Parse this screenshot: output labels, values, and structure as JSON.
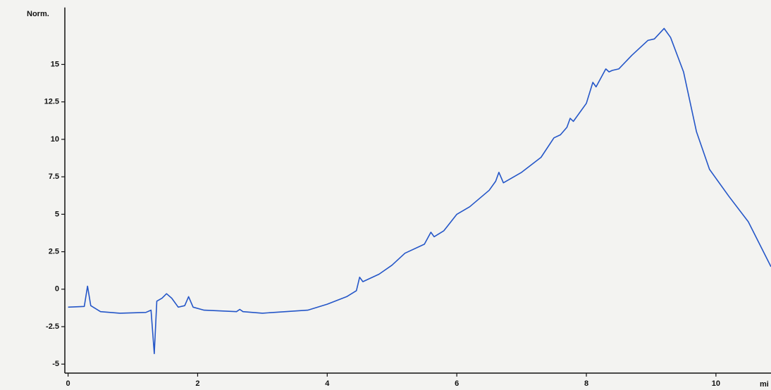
{
  "chart_data": {
    "type": "line",
    "y_label": "Norm.",
    "x_label": "mi",
    "x": [
      0,
      0.25,
      0.3,
      0.35,
      0.5,
      0.8,
      1.2,
      1.28,
      1.33,
      1.37,
      1.45,
      1.52,
      1.6,
      1.7,
      1.8,
      1.86,
      1.93,
      2.1,
      2.6,
      2.65,
      2.7,
      3.0,
      3.7,
      4.0,
      4.3,
      4.45,
      4.5,
      4.55,
      4.8,
      5.0,
      5.2,
      5.5,
      5.6,
      5.65,
      5.8,
      6.0,
      6.2,
      6.5,
      6.6,
      6.65,
      6.72,
      7.0,
      7.3,
      7.5,
      7.6,
      7.7,
      7.75,
      7.8,
      8.0,
      8.1,
      8.15,
      8.3,
      8.35,
      8.4,
      8.5,
      8.7,
      8.95,
      9.05,
      9.2,
      9.3,
      9.5,
      9.7,
      9.9,
      10.2,
      10.5,
      10.85
    ],
    "series": [
      {
        "color": "#2456c8",
        "values": [
          -1.2,
          -1.15,
          0.2,
          -1.1,
          -1.5,
          -1.6,
          -1.55,
          -1.4,
          -4.3,
          -0.8,
          -0.6,
          -0.3,
          -0.6,
          -1.2,
          -1.1,
          -0.5,
          -1.2,
          -1.4,
          -1.5,
          -1.35,
          -1.5,
          -1.6,
          -1.4,
          -1.0,
          -0.5,
          -0.1,
          0.8,
          0.5,
          1.0,
          1.6,
          2.4,
          3.0,
          3.8,
          3.5,
          3.9,
          5.0,
          5.5,
          6.6,
          7.2,
          7.8,
          7.1,
          7.8,
          8.8,
          10.1,
          10.3,
          10.8,
          11.4,
          11.2,
          12.4,
          13.8,
          13.5,
          14.7,
          14.5,
          14.6,
          14.7,
          15.6,
          16.6,
          16.7,
          17.4,
          16.8,
          14.5,
          10.5,
          8.0,
          6.2,
          4.5,
          1.5
        ]
      }
    ],
    "xlim": [
      -0.05,
      10.85
    ],
    "ylim": [
      -5.6,
      18.8
    ],
    "xticks": [
      0,
      2,
      4,
      6,
      8,
      10
    ],
    "yticks": [
      15,
      12.5,
      10,
      7.5,
      5,
      2.5,
      0,
      -2.5,
      -5
    ]
  }
}
